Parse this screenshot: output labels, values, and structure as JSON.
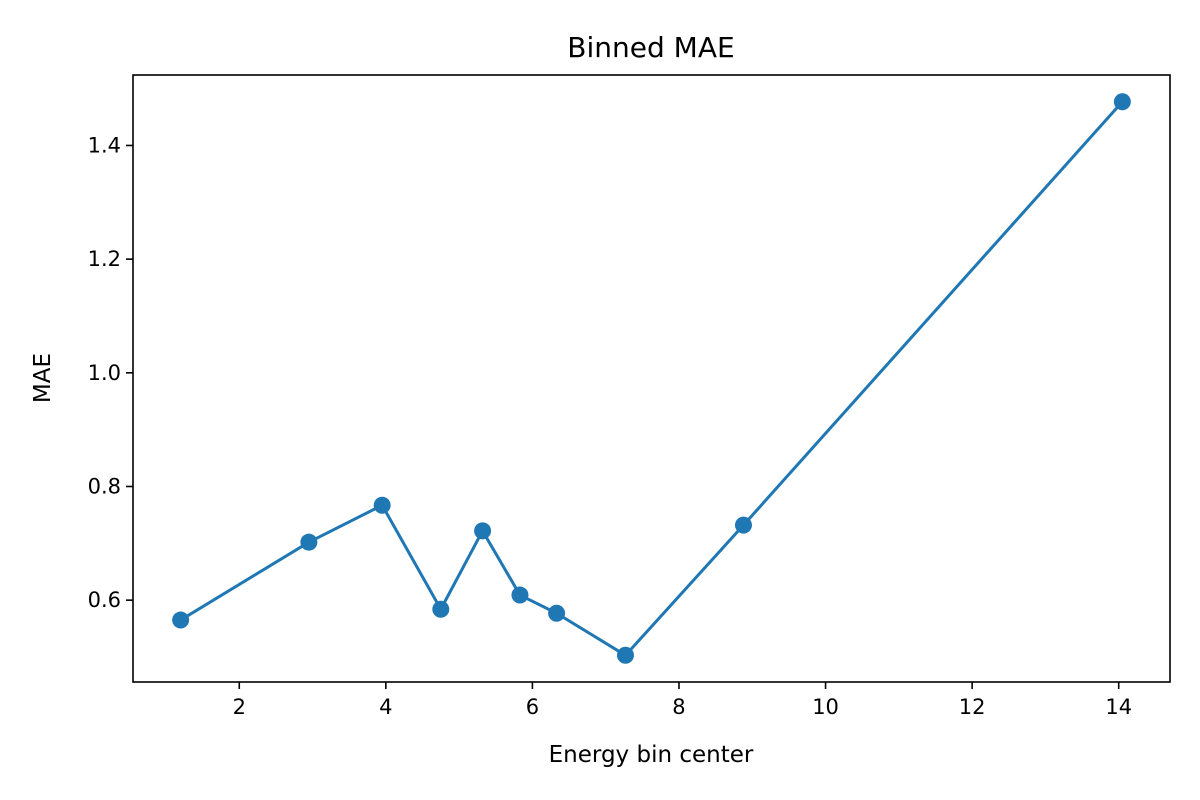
{
  "chart_data": {
    "type": "line",
    "title": "Binned MAE",
    "xlabel": "Energy bin center",
    "ylabel": "MAE",
    "xlim": [
      0.55,
      14.7
    ],
    "ylim": [
      0.456,
      1.524
    ],
    "xticks": [
      2,
      4,
      6,
      8,
      10,
      12,
      14
    ],
    "yticks": [
      0.6,
      0.8,
      1.0,
      1.2,
      1.4
    ],
    "xtick_labels": [
      "2",
      "4",
      "6",
      "8",
      "10",
      "12",
      "14"
    ],
    "ytick_labels": [
      "0.6",
      "0.8",
      "1.0",
      "1.2",
      "1.4"
    ],
    "grid": false,
    "series": [
      {
        "color": "#1f77b4",
        "marker": "circle",
        "x": [
          1.2,
          2.95,
          3.95,
          4.75,
          5.32,
          5.83,
          6.33,
          7.27,
          8.88,
          14.05
        ],
        "y": [
          0.565,
          0.702,
          0.767,
          0.584,
          0.722,
          0.609,
          0.577,
          0.503,
          0.732,
          1.477
        ]
      }
    ]
  }
}
